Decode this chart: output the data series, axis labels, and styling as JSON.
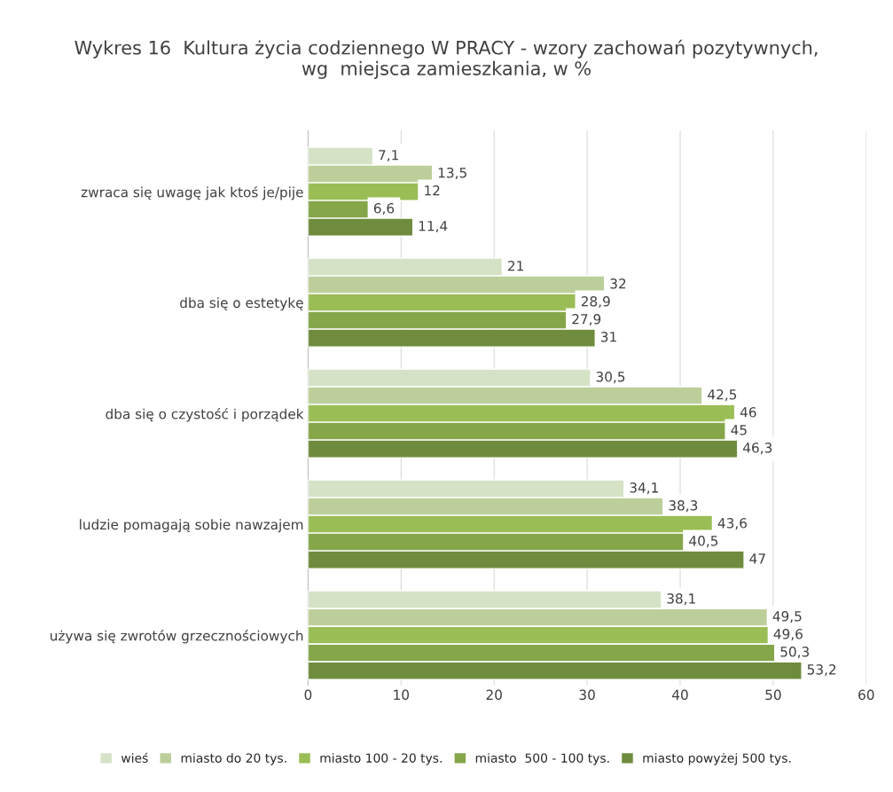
{
  "chart_data": {
    "type": "bar",
    "orientation": "horizontal",
    "title": "Wykres 16  Kultura życia codziennego W PRACY - wzory zachowań pozytywnych, wg  miejsca zamieszkania, w %",
    "categories": [
      "zwraca się uwagę jak ktoś je/pije",
      "dba się o estetykę",
      "dba się o czystość i porządek",
      "ludzie pomagają sobie nawzajem",
      "używa się zwrotów grzecznościowych"
    ],
    "series": [
      {
        "name": "wieś",
        "color": "#d5e2c6",
        "values": [
          7.1,
          21,
          30.5,
          34.1,
          38.1
        ],
        "value_labels": [
          "7,1",
          "21",
          "30,5",
          "34,1",
          "38,1"
        ]
      },
      {
        "name": "miasto do 20 tys.",
        "color": "#bccf9b",
        "values": [
          13.5,
          32,
          42.5,
          38.3,
          49.5
        ],
        "value_labels": [
          "13,5",
          "32",
          "42,5",
          "38,3",
          "49,5"
        ]
      },
      {
        "name": "miasto 100 - 20 tys.",
        "color": "#9bbd55",
        "values": [
          12,
          28.9,
          46,
          43.6,
          49.6
        ],
        "value_labels": [
          "12",
          "28,9",
          "46",
          "43,6",
          "49,6"
        ]
      },
      {
        "name": "miasto  500 - 100 tys.",
        "color": "#86a64a",
        "values": [
          6.6,
          27.9,
          45,
          40.5,
          50.3
        ],
        "value_labels": [
          "6,6",
          "27,9",
          "45",
          "40,5",
          "50,3"
        ]
      },
      {
        "name": "miasto powyżej 500 tys.",
        "color": "#6f8c3e",
        "values": [
          11.4,
          31,
          46.3,
          47,
          53.2
        ],
        "value_labels": [
          "11,4",
          "31",
          "46,3",
          "47",
          "53,2"
        ]
      }
    ],
    "xlim": [
      0,
      60
    ],
    "xticks": [
      0,
      10,
      20,
      30,
      40,
      50,
      60
    ],
    "grid": "x",
    "legend": "bottom"
  }
}
